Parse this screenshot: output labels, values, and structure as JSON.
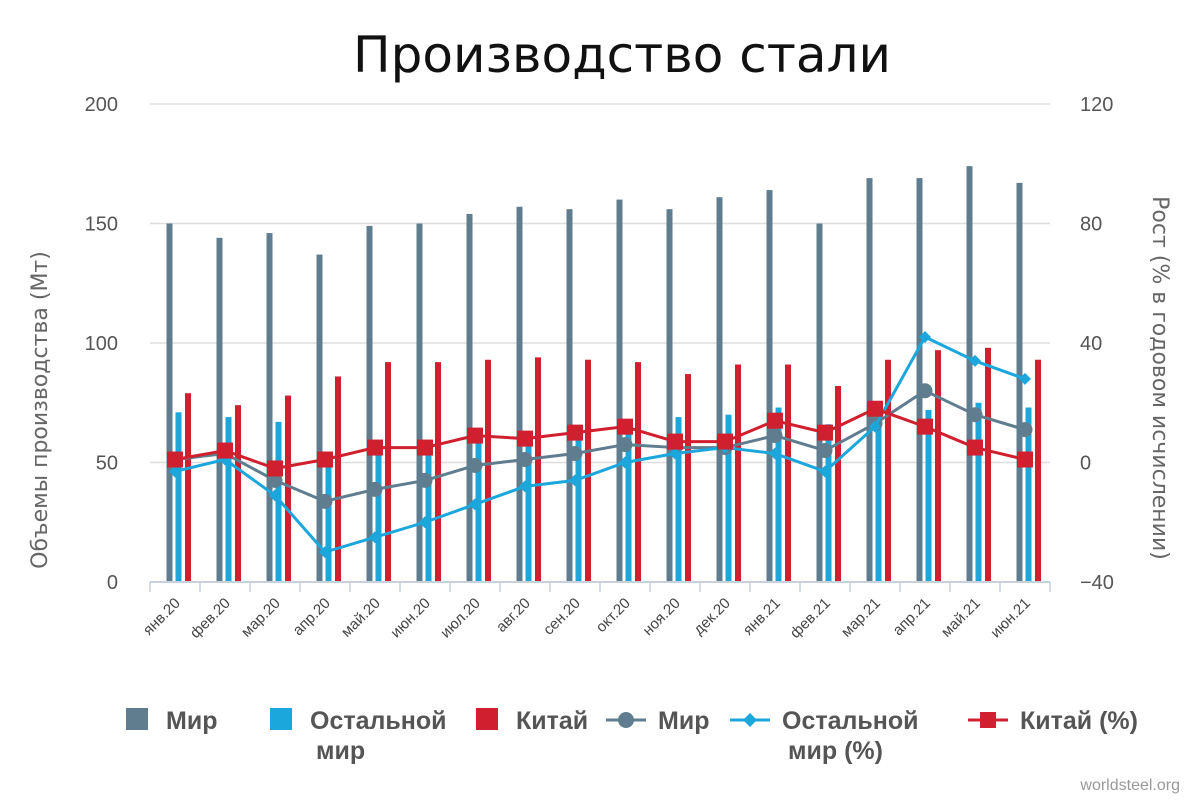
{
  "chart_data": {
    "type": "bar",
    "title": "Производство стали",
    "ylabel": "Объемы производства (Мт)",
    "y2label": "Рост (% в годовом исчислении)",
    "ylim": [
      0,
      200
    ],
    "yticks": [
      "0",
      "50",
      "100",
      "150",
      "200"
    ],
    "y2lim": [
      -40,
      120
    ],
    "y2ticks": [
      "−40",
      "0",
      "40",
      "80",
      "120"
    ],
    "categories": [
      "янв.20",
      "фев.20",
      "мар.20",
      "апр.20",
      "май.20",
      "июн.20",
      "июл.20",
      "авг.20",
      "сен.20",
      "окт.20",
      "ноя.20",
      "дек.20",
      "янв.21",
      "фев.21",
      "мар.21",
      "апр.21",
      "май.21",
      "июн.21"
    ],
    "grid": true,
    "legend_position": "bottom",
    "series": [
      {
        "name": "Мир",
        "kind": "bar",
        "axis": "left",
        "color": "#5f7d8f",
        "values": [
          150,
          144,
          146,
          137,
          149,
          150,
          154,
          157,
          156,
          160,
          156,
          161,
          164,
          150,
          169,
          169,
          174,
          167
        ]
      },
      {
        "name": "Остальной мир",
        "kind": "bar",
        "axis": "left",
        "color": "#1ba7dc",
        "values": [
          71,
          69,
          67,
          50,
          55,
          55,
          60,
          63,
          63,
          65,
          69,
          70,
          73,
          66,
          74,
          72,
          75,
          73
        ]
      },
      {
        "name": "Китай",
        "kind": "bar",
        "axis": "left",
        "color": "#d0202f",
        "values": [
          79,
          74,
          78,
          86,
          92,
          92,
          93,
          94,
          93,
          92,
          87,
          91,
          91,
          82,
          93,
          97,
          98,
          93
        ]
      },
      {
        "name": "Мир",
        "kind": "line",
        "axis": "right",
        "color": "#5f7d8f",
        "marker": "circle",
        "values": [
          1,
          3,
          -6,
          -13,
          -9,
          -6,
          -1,
          1,
          3,
          6,
          5,
          5,
          9,
          4,
          13,
          24,
          16,
          11
        ]
      },
      {
        "name": "Остальной мир (%)",
        "kind": "line",
        "axis": "right",
        "color": "#1ba7dc",
        "marker": "diamond",
        "values": [
          -3,
          1,
          -11,
          -30,
          -25,
          -20,
          -14,
          -8,
          -6,
          0,
          3,
          5,
          3,
          -3,
          12,
          42,
          34,
          28
        ]
      },
      {
        "name": "Китай (%)",
        "kind": "line",
        "axis": "right",
        "color": "#d0202f",
        "marker": "square",
        "values": [
          1,
          4,
          -2,
          1,
          5,
          5,
          9,
          8,
          10,
          12,
          7,
          7,
          14,
          10,
          18,
          12,
          5,
          1
        ]
      }
    ]
  },
  "legend": {
    "items": [
      {
        "label": "Мир",
        "color": "#5f7d8f"
      },
      {
        "label": "Остальной\nмир",
        "color": "#1ba7dc"
      },
      {
        "label": "Китай",
        "color": "#d0202f"
      },
      {
        "label": "Мир",
        "color": "#5f7d8f"
      },
      {
        "label": "Остальной\nмир (%)",
        "color": "#1ba7dc"
      },
      {
        "label": "Китай (%)",
        "color": "#d0202f"
      }
    ]
  },
  "credit": "worldsteel.org"
}
